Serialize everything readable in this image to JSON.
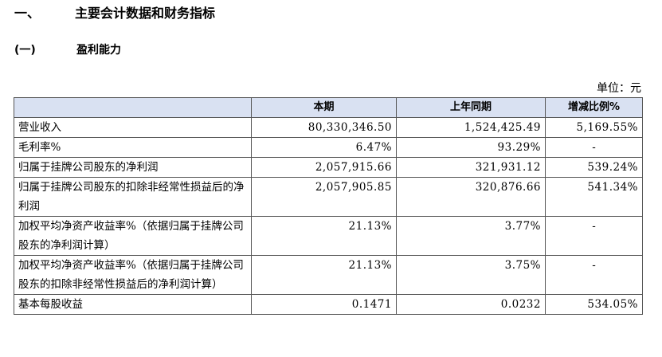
{
  "section": {
    "number": "一、",
    "title": "主要会计数据和财务指标"
  },
  "subsection": {
    "number": "(一)",
    "title": "盈利能力"
  },
  "unit_label": "单位：元",
  "table": {
    "headers": [
      "",
      "本期",
      "上年同期",
      "增减比例%"
    ],
    "rows": [
      [
        "营业收入",
        "80,330,346.50",
        "1,524,425.49",
        "5,169.55%"
      ],
      [
        "毛利率%",
        "6.47%",
        "93.29%",
        "-"
      ],
      [
        "归属于挂牌公司股东的净利润",
        "2,057,915.66",
        "321,931.12",
        "539.24%"
      ],
      [
        "归属于挂牌公司股东的扣除非经常性损益后的净利润",
        "2,057,905.85",
        "320,876.66",
        "541.34%"
      ],
      [
        "加权平均净资产收益率%（依据归属于挂牌公司股东的净利润计算）",
        "21.13%",
        "3.77%",
        "-"
      ],
      [
        "加权平均净资产收益率%（依据归属于挂牌公司股东的扣除非经常性损益后的净利润计算）",
        "21.13%",
        "3.75%",
        "-"
      ],
      [
        "基本每股收益",
        "0.1471",
        "0.0232",
        "534.05%"
      ]
    ]
  }
}
